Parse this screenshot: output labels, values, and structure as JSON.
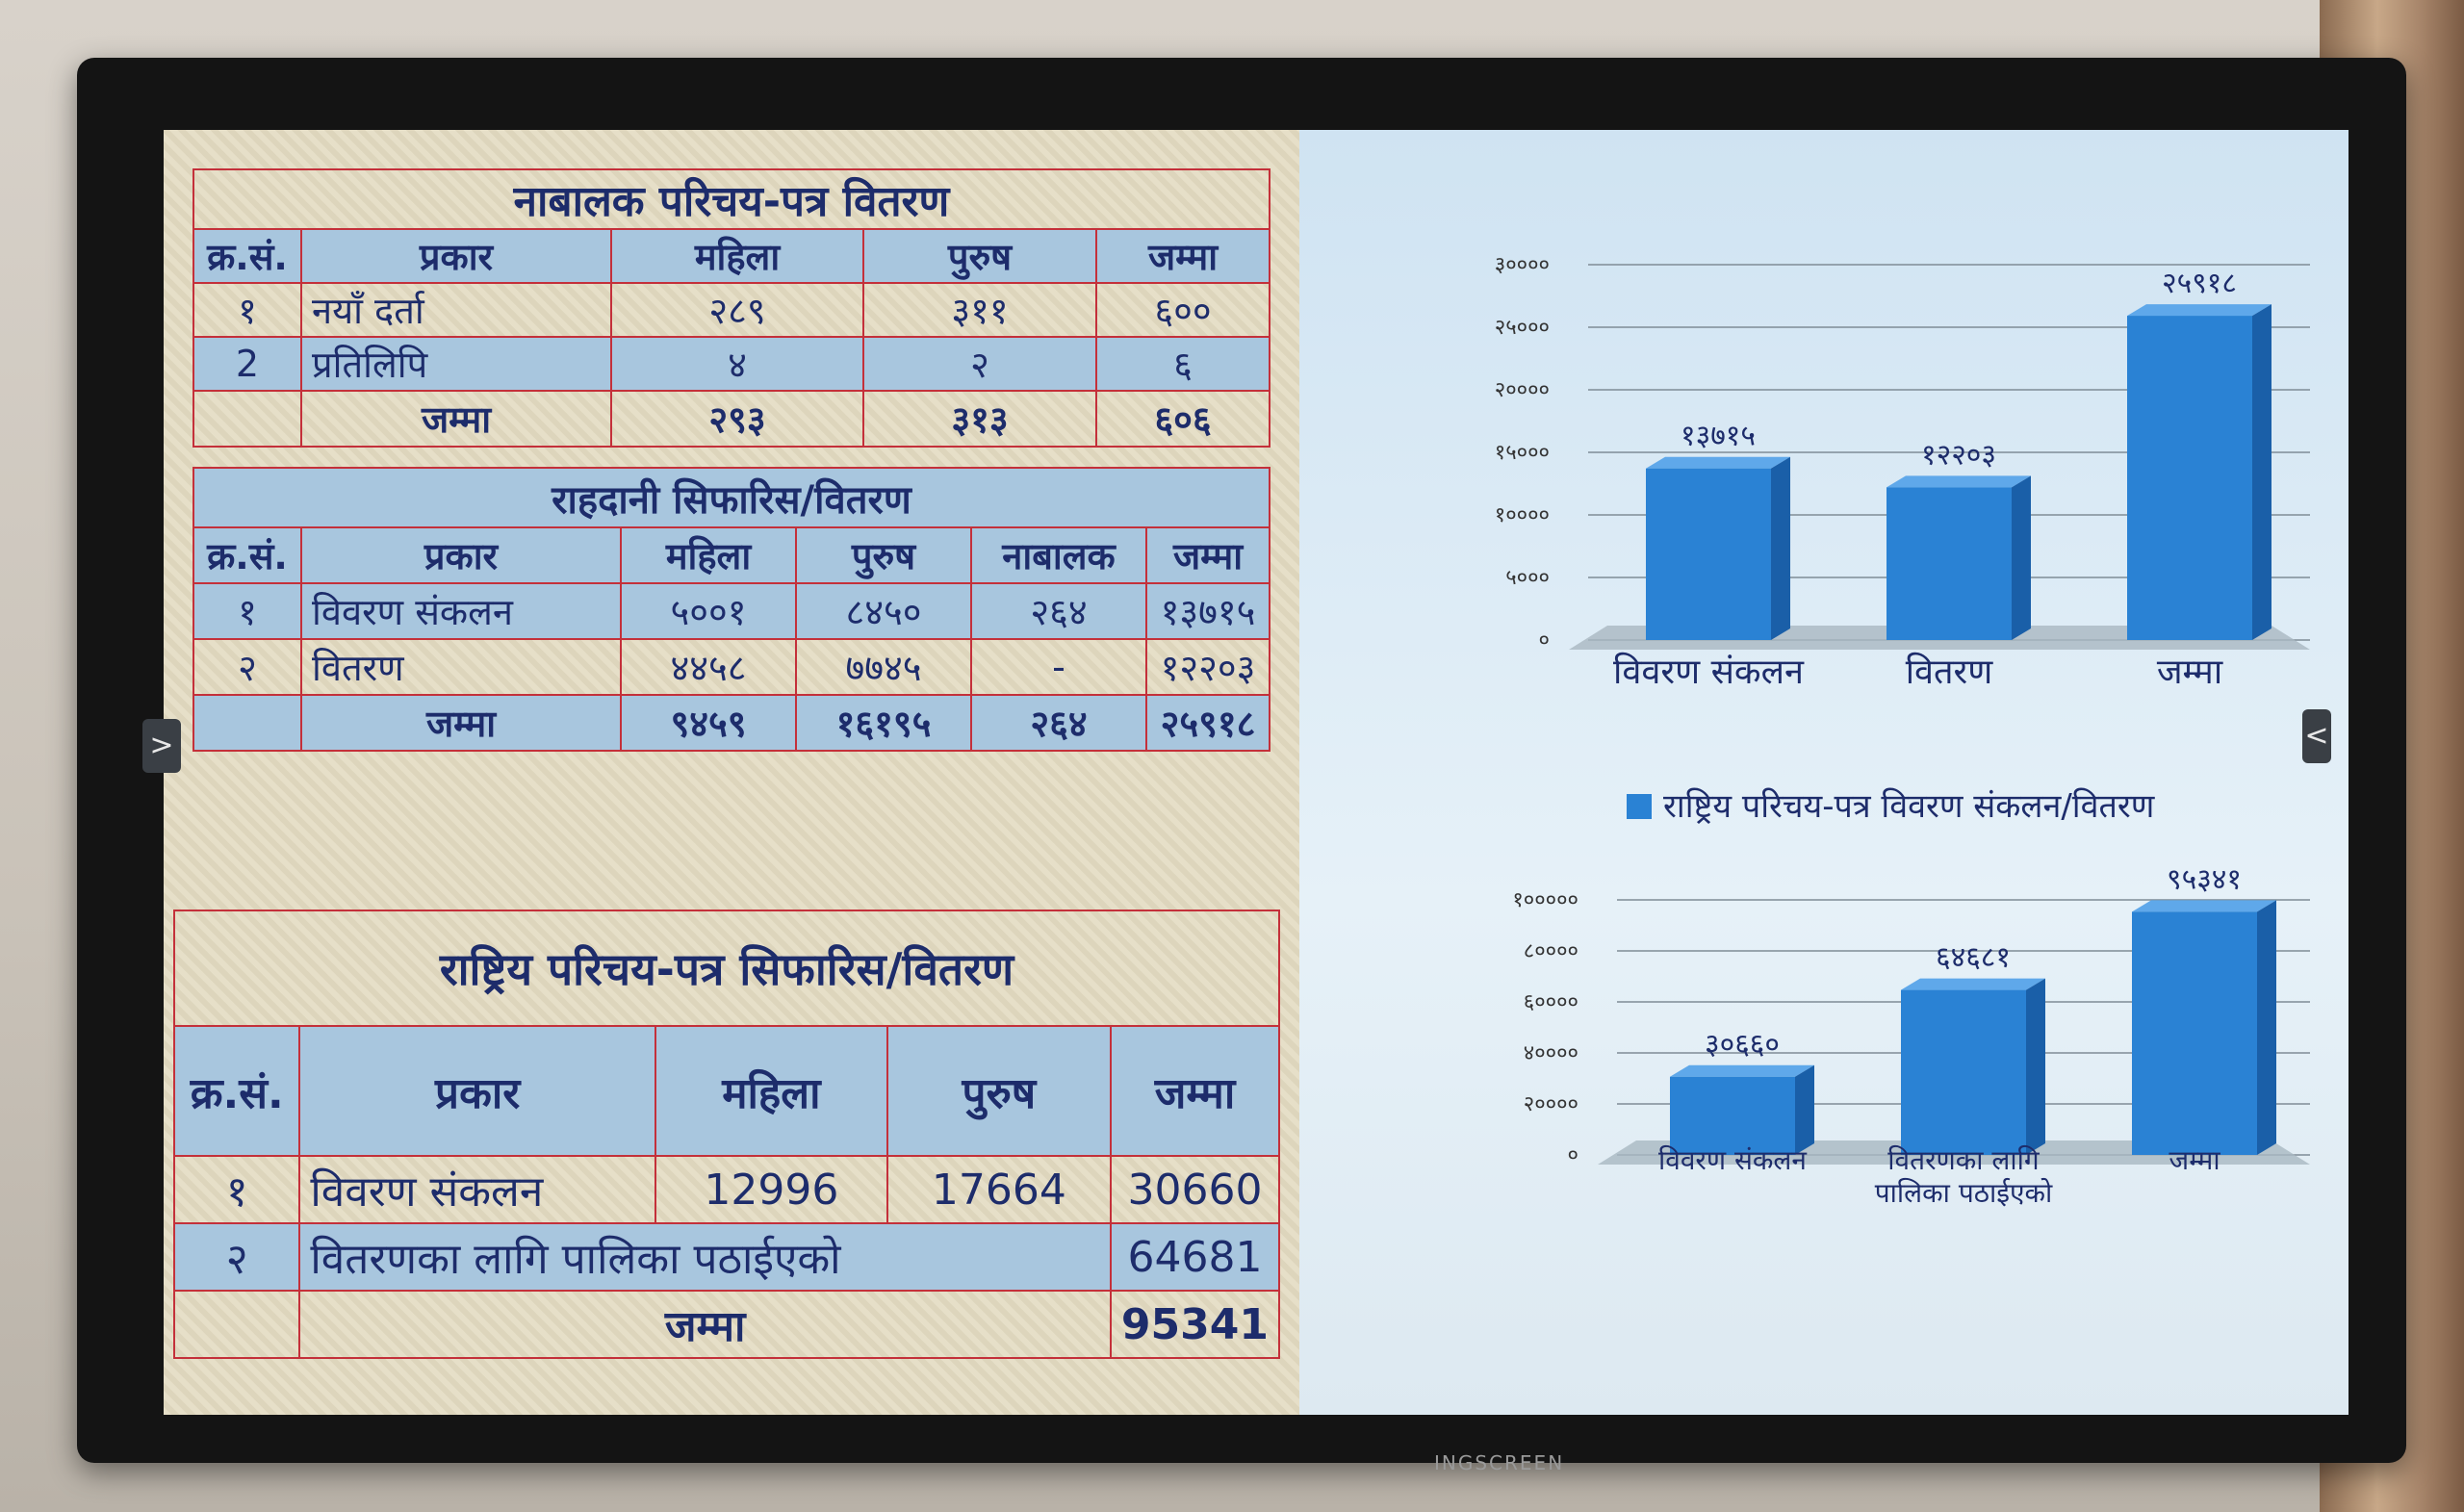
{
  "screen_brand": "INGSCREEN",
  "nav": {
    "prev_glyph": ">",
    "next_glyph": "<"
  },
  "table1": {
    "title": "नाबालक परिचय-पत्र वितरण",
    "headers": [
      "क्र.सं.",
      "प्रकार",
      "महिला",
      "पुरुष",
      "जम्मा"
    ],
    "rows": [
      [
        "१",
        "नयाँ दर्ता",
        "२८९",
        "३११",
        "६००"
      ],
      [
        "2",
        "प्रतिलिपि",
        "४",
        "२",
        "६"
      ]
    ],
    "total": [
      "",
      "जम्मा",
      "२९३",
      "३१३",
      "६०६"
    ]
  },
  "table2": {
    "title": "राहदानी सिफारिस/वितरण",
    "headers": [
      "क्र.सं.",
      "प्रकार",
      "महिला",
      "पुरुष",
      "नाबालक",
      "जम्मा"
    ],
    "rows": [
      [
        "१",
        "विवरण संकलन",
        "५००१",
        "८४५०",
        "२६४",
        "१३७१५"
      ],
      [
        "२",
        "वितरण",
        "४४५८",
        "७७४५",
        "-",
        "१२२०३"
      ]
    ],
    "total": [
      "",
      "जम्मा",
      "९४५९",
      "१६१९५",
      "२६४",
      "२५९१८"
    ]
  },
  "table3": {
    "title": "राष्ट्रिय परिचय-पत्र सिफारिस/वितरण",
    "headers": [
      "क्र.सं.",
      "प्रकार",
      "महिला",
      "पुरुष",
      "जम्मा"
    ],
    "rows": [
      [
        "१",
        "विवरण संकलन",
        "12996",
        "17664",
        "30660"
      ],
      [
        "२",
        "वितरणका लागि पालिका पठाईएको",
        "",
        "",
        "64681"
      ]
    ],
    "total": [
      "",
      "जम्मा",
      "",
      "",
      "95341"
    ]
  },
  "chart_data": [
    {
      "type": "bar",
      "title": "",
      "categories": [
        "विवरण संकलन",
        "वितरण",
        "जम्मा"
      ],
      "values": [
        13715,
        12203,
        25918
      ],
      "data_labels": [
        "१३७१५",
        "१२२०३",
        "२५९१८"
      ],
      "y_ticks": [
        "०",
        "५०००",
        "१००००",
        "१५०००",
        "२००००",
        "२५०००",
        "३००००"
      ],
      "ylim": [
        0,
        30000
      ],
      "color": "#2a82d4"
    },
    {
      "type": "bar",
      "title": "",
      "legend": "राष्ट्रिय परिचय-पत्र विवरण संकलन/वितरण",
      "categories": [
        "विवरण संकलन",
        "वितरणका लागि पालिका पठाईएको",
        "जम्मा"
      ],
      "values": [
        30660,
        64681,
        95341
      ],
      "data_labels": [
        "३०६६०",
        "६४६८१",
        "९५३४१"
      ],
      "y_ticks": [
        "०",
        "२००००",
        "४००००",
        "६००००",
        "८००००",
        "१०००००"
      ],
      "ylim": [
        0,
        100000
      ],
      "color": "#2a82d4"
    }
  ]
}
